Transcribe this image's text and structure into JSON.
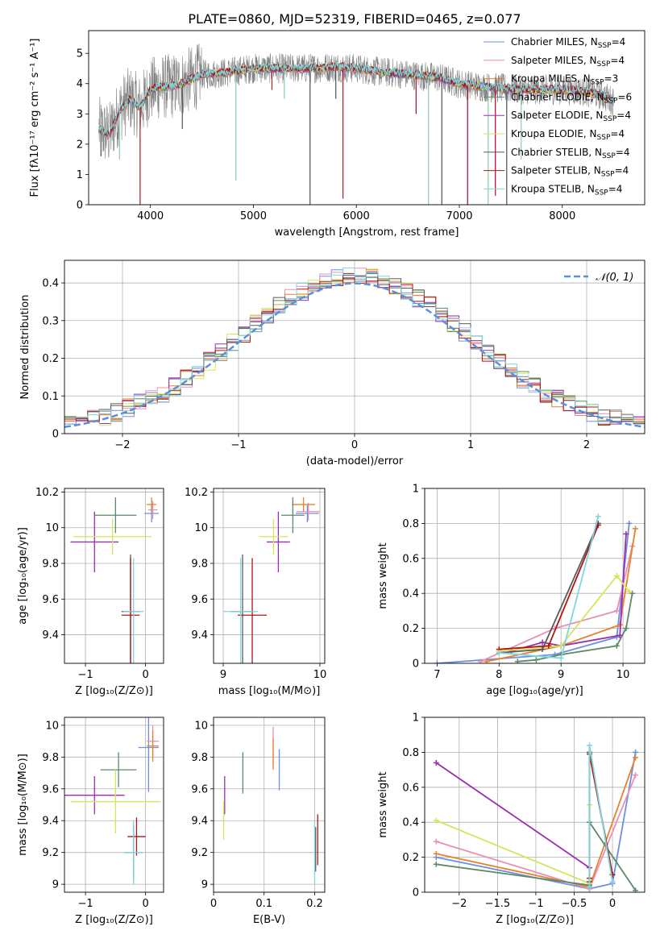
{
  "figure_title": "PLATE=0860, MJD=52319, FIBERID=0465, z=0.077",
  "colors": {
    "chabrier_miles": "#6d8fe0",
    "salpeter_miles": "#e98fb7",
    "kroupa_miles": "#e6822a",
    "chabrier_elodie": "#5b8a67",
    "salpeter_elodie": "#9b2fae",
    "kroupa_elodie": "#d3e65a",
    "chabrier_stelib": "#5a5a5a",
    "salpeter_stelib": "#b01515",
    "kroupa_stelib": "#7fd6de",
    "data_spectrum": "#808080",
    "normal_curve": "#5b8fd6"
  },
  "legend_order": [
    "chabrier_miles",
    "salpeter_miles",
    "kroupa_miles",
    "chabrier_elodie",
    "salpeter_elodie",
    "kroupa_elodie",
    "chabrier_stelib",
    "salpeter_stelib",
    "kroupa_stelib"
  ],
  "chart_data": [
    {
      "id": "spectrum",
      "type": "line",
      "xlabel": "wavelength [Angstrom, rest frame]",
      "ylabel": "Flux [fλ10⁻¹⁷ erg cm⁻² s⁻¹ A⁻¹]",
      "xlim": [
        3400,
        8800
      ],
      "ylim": [
        0,
        5.75
      ],
      "xticks": [
        4000,
        5000,
        6000,
        7000,
        8000
      ],
      "yticks": [
        0,
        1,
        2,
        3,
        4,
        5
      ],
      "grid": false,
      "legend_position": "right",
      "legend": [
        {
          "key": "chabrier_miles",
          "label": "Chabrier MILES, N",
          "sub": "SSP",
          "suffix": "=4"
        },
        {
          "key": "salpeter_miles",
          "label": "Salpeter MILES, N",
          "sub": "SSP",
          "suffix": "=4"
        },
        {
          "key": "kroupa_miles",
          "label": "Kroupa MILES, N",
          "sub": "SSP",
          "suffix": "=3"
        },
        {
          "key": "chabrier_elodie",
          "label": "Chabrier ELODIE, N",
          "sub": "SSP",
          "suffix": "=6"
        },
        {
          "key": "salpeter_elodie",
          "label": "Salpeter ELODIE, N",
          "sub": "SSP",
          "suffix": "=4"
        },
        {
          "key": "kroupa_elodie",
          "label": "Kroupa ELODIE, N",
          "sub": "SSP",
          "suffix": "=4"
        },
        {
          "key": "chabrier_stelib",
          "label": "Chabrier STELIB, N",
          "sub": "SSP",
          "suffix": "=4"
        },
        {
          "key": "salpeter_stelib",
          "label": "Salpeter STELIB, N",
          "sub": "SSP",
          "suffix": "=4"
        },
        {
          "key": "kroupa_stelib",
          "label": "Kroupa STELIB, N",
          "sub": "SSP",
          "suffix": "=4"
        }
      ],
      "continuum": [
        [
          3500,
          2.5
        ],
        [
          3600,
          2.3
        ],
        [
          3700,
          3.1
        ],
        [
          3800,
          3.5
        ],
        [
          3900,
          3.2
        ],
        [
          4000,
          3.8
        ],
        [
          4100,
          3.9
        ],
        [
          4200,
          3.9
        ],
        [
          4300,
          4.0
        ],
        [
          4500,
          4.3
        ],
        [
          4700,
          4.35
        ],
        [
          5000,
          4.5
        ],
        [
          5200,
          4.5
        ],
        [
          5500,
          4.5
        ],
        [
          5800,
          4.55
        ],
        [
          6000,
          4.5
        ],
        [
          6200,
          4.4
        ],
        [
          6500,
          4.3
        ],
        [
          6800,
          4.2
        ],
        [
          7000,
          4.0
        ],
        [
          7200,
          3.9
        ],
        [
          7400,
          3.85
        ],
        [
          7600,
          3.8
        ],
        [
          7800,
          3.8
        ],
        [
          8000,
          3.8
        ],
        [
          8200,
          3.75
        ],
        [
          8400,
          3.6
        ],
        [
          8500,
          3.4
        ]
      ],
      "drops": [
        [
          3520,
          1.6
        ],
        [
          3900,
          0.0
        ],
        [
          4830,
          0.8
        ],
        [
          5550,
          0.0
        ],
        [
          5870,
          0.2
        ],
        [
          6700,
          0.0
        ],
        [
          6830,
          0.0
        ],
        [
          7080,
          0.0
        ],
        [
          7280,
          0.0
        ],
        [
          7460,
          0.0
        ],
        [
          7350,
          0.3
        ],
        [
          3700,
          1.5
        ],
        [
          4310,
          2.5
        ],
        [
          5180,
          3.8
        ],
        [
          5300,
          3.5
        ],
        [
          5800,
          3.5
        ],
        [
          6580,
          3.0
        ],
        [
          7600,
          1.5
        ]
      ]
    },
    {
      "id": "residuals",
      "type": "step-histogram",
      "xlabel": "(data-model)/error",
      "ylabel": "Normed distribution",
      "xlim": [
        -2.5,
        2.5
      ],
      "ylim": [
        0,
        0.46
      ],
      "xticks": [
        -2,
        -1,
        0,
        1,
        2
      ],
      "yticks": [
        0.0,
        0.1,
        0.2,
        0.3,
        0.4
      ],
      "grid": true,
      "bin_width": 0.1,
      "legend_label": "𝒩(0, 1)",
      "legend_position": "top-right",
      "normal_pdf": {
        "mean": 0,
        "sigma": 1
      }
    },
    {
      "id": "z_age",
      "type": "errorbar",
      "xlabel": "Z [log₁₀(Z/Z⊙)]",
      "ylabel": "age [log₁₀(age/yr)]",
      "xlim": [
        -1.35,
        0.3
      ],
      "ylim": [
        9.24,
        10.22
      ],
      "xticks": [
        -1,
        0
      ],
      "yticks": [
        9.4,
        9.6,
        9.8,
        10.0,
        10.2
      ],
      "grid": true,
      "points": [
        {
          "key": "chabrier_miles",
          "x": 0.1,
          "xerr": 0.12,
          "y": 10.08,
          "yerr": 0.05
        },
        {
          "key": "salpeter_miles",
          "x": 0.12,
          "xerr": 0.08,
          "y": 10.1,
          "yerr": 0.05
        },
        {
          "key": "kroupa_miles",
          "x": 0.1,
          "xerr": 0.08,
          "y": 10.13,
          "yerr": 0.04
        },
        {
          "key": "chabrier_elodie",
          "x": -0.5,
          "xerr": 0.35,
          "y": 10.07,
          "yerr": 0.1
        },
        {
          "key": "salpeter_elodie",
          "x": -0.85,
          "xerr": 0.4,
          "y": 9.92,
          "yerr": 0.17
        },
        {
          "key": "kroupa_elodie",
          "x": -0.55,
          "xerr": 0.65,
          "y": 9.95,
          "yerr": 0.1
        },
        {
          "key": "chabrier_stelib",
          "x": -0.25,
          "xerr": 0.15,
          "y": 9.53,
          "yerr": 0.32
        },
        {
          "key": "salpeter_stelib",
          "x": -0.25,
          "xerr": 0.15,
          "y": 9.51,
          "yerr": 0.32
        },
        {
          "key": "kroupa_stelib",
          "x": -0.2,
          "xerr": 0.17,
          "y": 9.53,
          "yerr": 0.3
        }
      ]
    },
    {
      "id": "mass_age",
      "type": "errorbar",
      "xlabel": "mass [log₁₀(M/M⊙)]",
      "ylabel": "",
      "xlim": [
        8.9,
        10.05
      ],
      "ylim": [
        9.24,
        10.22
      ],
      "xticks": [
        9,
        10
      ],
      "yticks": [
        9.4,
        9.6,
        9.8,
        10.0,
        10.2
      ],
      "grid": true,
      "points": [
        {
          "key": "chabrier_miles",
          "x": 9.87,
          "xerr": 0.12,
          "y": 10.08,
          "yerr": 0.05
        },
        {
          "key": "salpeter_miles",
          "x": 9.88,
          "xerr": 0.12,
          "y": 10.09,
          "yerr": 0.05
        },
        {
          "key": "kroupa_miles",
          "x": 9.83,
          "xerr": 0.12,
          "y": 10.13,
          "yerr": 0.04
        },
        {
          "key": "chabrier_elodie",
          "x": 9.72,
          "xerr": 0.12,
          "y": 10.07,
          "yerr": 0.1
        },
        {
          "key": "salpeter_elodie",
          "x": 9.57,
          "xerr": 0.12,
          "y": 9.92,
          "yerr": 0.17
        },
        {
          "key": "kroupa_elodie",
          "x": 9.52,
          "xerr": 0.15,
          "y": 9.95,
          "yerr": 0.1
        },
        {
          "key": "chabrier_stelib",
          "x": 9.2,
          "xerr": 0.12,
          "y": 9.53,
          "yerr": 0.32
        },
        {
          "key": "salpeter_stelib",
          "x": 9.3,
          "xerr": 0.15,
          "y": 9.51,
          "yerr": 0.32
        },
        {
          "key": "kroupa_stelib",
          "x": 9.18,
          "xerr": 0.18,
          "y": 9.53,
          "yerr": 0.3
        }
      ]
    },
    {
      "id": "age_weight",
      "type": "line",
      "xlabel": "age [log₁₀(age/yr)]",
      "ylabel": "mass weight",
      "xlim": [
        6.8,
        10.35
      ],
      "ylim": [
        0,
        1
      ],
      "xticks": [
        7,
        8,
        9,
        10
      ],
      "yticks": [
        0.0,
        0.2,
        0.4,
        0.6,
        0.8,
        1.0
      ],
      "grid": true,
      "series": [
        {
          "key": "chabrier_miles",
          "x": [
            7.0,
            8.9,
            9.9,
            10.1
          ],
          "y": [
            0.0,
            0.05,
            0.15,
            0.8
          ]
        },
        {
          "key": "salpeter_miles",
          "x": [
            7.7,
            8.9,
            9.9,
            10.15
          ],
          "y": [
            0.01,
            0.2,
            0.3,
            0.67
          ]
        },
        {
          "key": "kroupa_miles",
          "x": [
            7.8,
            9.0,
            9.95,
            10.2
          ],
          "y": [
            0.01,
            0.1,
            0.22,
            0.77
          ]
        },
        {
          "key": "chabrier_elodie",
          "x": [
            8.3,
            8.6,
            9.0,
            9.9,
            10.05,
            10.15
          ],
          "y": [
            0.01,
            0.02,
            0.05,
            0.1,
            0.2,
            0.4
          ]
        },
        {
          "key": "salpeter_elodie",
          "x": [
            8.2,
            8.7,
            9.0,
            9.95,
            10.05
          ],
          "y": [
            0.07,
            0.12,
            0.1,
            0.16,
            0.74
          ]
        },
        {
          "key": "kroupa_elodie",
          "x": [
            8.0,
            9.0,
            9.9,
            10.1
          ],
          "y": [
            0.07,
            0.1,
            0.5,
            0.41
          ]
        },
        {
          "key": "chabrier_stelib",
          "x": [
            8.0,
            8.7,
            9.6
          ],
          "y": [
            0.06,
            0.08,
            0.8
          ]
        },
        {
          "key": "salpeter_stelib",
          "x": [
            8.0,
            8.8,
            9.6
          ],
          "y": [
            0.08,
            0.1,
            0.79
          ]
        },
        {
          "key": "kroupa_stelib",
          "x": [
            8.0,
            9.0,
            9.6
          ],
          "y": [
            0.06,
            0.03,
            0.84
          ]
        }
      ]
    },
    {
      "id": "z_mass",
      "type": "errorbar",
      "xlabel": "Z [log₁₀(Z/Z⊙)]",
      "ylabel": "mass [log₁₀(M/M⊙)]",
      "xlim": [
        -1.35,
        0.3
      ],
      "ylim": [
        8.95,
        10.05
      ],
      "xticks": [
        -1,
        0
      ],
      "yticks": [
        9.0,
        9.2,
        9.4,
        9.6,
        9.8,
        10.0
      ],
      "grid": true,
      "points": [
        {
          "key": "chabrier_miles",
          "x": 0.05,
          "xerr": 0.17,
          "y": 9.86,
          "yerr": 0.28
        },
        {
          "key": "salpeter_miles",
          "x": 0.12,
          "xerr": 0.1,
          "y": 9.9,
          "yerr": 0.1
        },
        {
          "key": "kroupa_miles",
          "x": 0.12,
          "xerr": 0.1,
          "y": 9.87,
          "yerr": 0.1
        },
        {
          "key": "chabrier_elodie",
          "x": -0.45,
          "xerr": 0.3,
          "y": 9.72,
          "yerr": 0.11
        },
        {
          "key": "salpeter_elodie",
          "x": -0.85,
          "xerr": 0.5,
          "y": 9.56,
          "yerr": 0.12
        },
        {
          "key": "kroupa_elodie",
          "x": -0.5,
          "xerr": 0.75,
          "y": 9.52,
          "yerr": 0.2
        },
        {
          "key": "chabrier_stelib",
          "x": -0.2,
          "xerr": 0.15,
          "y": 9.2,
          "yerr": 0.17
        },
        {
          "key": "salpeter_stelib",
          "x": -0.15,
          "xerr": 0.15,
          "y": 9.3,
          "yerr": 0.12
        },
        {
          "key": "kroupa_stelib",
          "x": -0.2,
          "xerr": 0.15,
          "y": 9.2,
          "yerr": 0.2
        }
      ]
    },
    {
      "id": "ebv_mass",
      "type": "errorbar",
      "xlabel": "E(B-V)",
      "ylabel": "",
      "xlim": [
        0.0,
        0.22
      ],
      "ylim": [
        8.95,
        10.05
      ],
      "xticks": [
        0.0,
        0.1,
        0.2
      ],
      "yticks": [
        9.0,
        9.2,
        9.4,
        9.6,
        9.8,
        10.0
      ],
      "grid": true,
      "points": [
        {
          "key": "chabrier_miles",
          "x": 0.13,
          "xerr": 0,
          "y": 9.72,
          "yerr": 0.13
        },
        {
          "key": "salpeter_miles",
          "x": 0.118,
          "xerr": 0,
          "y": 9.87,
          "yerr": 0.12
        },
        {
          "key": "kroupa_miles",
          "x": 0.118,
          "xerr": 0,
          "y": 9.82,
          "yerr": 0.1
        },
        {
          "key": "chabrier_elodie",
          "x": 0.058,
          "xerr": 0,
          "y": 9.7,
          "yerr": 0.13
        },
        {
          "key": "salpeter_elodie",
          "x": 0.022,
          "xerr": 0,
          "y": 9.56,
          "yerr": 0.12
        },
        {
          "key": "kroupa_elodie",
          "x": 0.02,
          "xerr": 0,
          "y": 9.4,
          "yerr": 0.12
        },
        {
          "key": "chabrier_stelib",
          "x": 0.202,
          "xerr": 0,
          "y": 9.22,
          "yerr": 0.14
        },
        {
          "key": "salpeter_stelib",
          "x": 0.206,
          "xerr": 0,
          "y": 9.28,
          "yerr": 0.16
        },
        {
          "key": "kroupa_stelib",
          "x": 0.2,
          "xerr": 0,
          "y": 9.2,
          "yerr": 0.2
        }
      ]
    },
    {
      "id": "z_weight",
      "type": "line",
      "xlabel": "Z [log₁₀(Z/Z⊙)]",
      "ylabel": "mass weight",
      "xlim": [
        -2.45,
        0.42
      ],
      "ylim": [
        0,
        1
      ],
      "xticks": [
        -2.0,
        -1.5,
        -1.0,
        -0.5,
        0.0
      ],
      "yticks": [
        0.0,
        0.2,
        0.4,
        0.6,
        0.8,
        1.0
      ],
      "grid": true,
      "series": [
        {
          "key": "chabrier_miles",
          "x": [
            -2.3,
            -0.3,
            0.0,
            0.3
          ],
          "y": [
            0.2,
            0.02,
            0.05,
            0.8
          ]
        },
        {
          "key": "salpeter_miles",
          "x": [
            -2.3,
            -0.3,
            0.3
          ],
          "y": [
            0.29,
            0.02,
            0.67
          ]
        },
        {
          "key": "kroupa_miles",
          "x": [
            -2.3,
            -0.3,
            0.3
          ],
          "y": [
            0.22,
            0.03,
            0.77
          ]
        },
        {
          "key": "chabrier_elodie",
          "x": [
            -2.3,
            -0.3,
            -0.3,
            0.3
          ],
          "y": [
            0.16,
            0.04,
            0.4,
            0.01
          ]
        },
        {
          "key": "salpeter_elodie",
          "x": [
            -2.3,
            -0.3
          ],
          "y": [
            0.74,
            0.14
          ]
        },
        {
          "key": "kroupa_elodie",
          "x": [
            -2.3,
            -0.3,
            -0.3
          ],
          "y": [
            0.41,
            0.05,
            0.5
          ]
        },
        {
          "key": "chabrier_stelib",
          "x": [
            -0.3,
            -0.3,
            0.0
          ],
          "y": [
            0.06,
            0.8,
            0.1
          ]
        },
        {
          "key": "salpeter_stelib",
          "x": [
            -0.3,
            -0.3,
            0.0
          ],
          "y": [
            0.08,
            0.79,
            0.1
          ]
        },
        {
          "key": "kroupa_stelib",
          "x": [
            -0.3,
            -0.3,
            0.0
          ],
          "y": [
            0.03,
            0.84,
            0.06
          ]
        }
      ]
    }
  ]
}
